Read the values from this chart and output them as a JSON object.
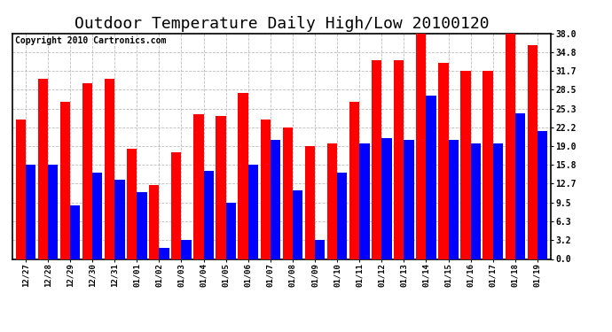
{
  "title": "Outdoor Temperature Daily High/Low 20100120",
  "copyright": "Copyright 2010 Cartronics.com",
  "dates": [
    "12/27",
    "12/28",
    "12/29",
    "12/30",
    "12/31",
    "01/01",
    "01/02",
    "01/03",
    "01/04",
    "01/05",
    "01/06",
    "01/07",
    "01/08",
    "01/09",
    "01/10",
    "01/11",
    "01/12",
    "01/13",
    "01/14",
    "01/15",
    "01/16",
    "01/17",
    "01/18",
    "01/19"
  ],
  "highs": [
    23.5,
    30.3,
    26.5,
    29.6,
    30.3,
    18.5,
    12.5,
    17.9,
    24.3,
    24.0,
    28.0,
    23.5,
    22.2,
    19.0,
    19.5,
    26.5,
    33.5,
    33.5,
    38.0,
    33.0,
    31.7,
    31.7,
    38.0,
    36.0
  ],
  "lows": [
    15.8,
    15.8,
    9.0,
    14.5,
    13.3,
    11.2,
    1.8,
    3.2,
    14.8,
    9.5,
    15.8,
    20.0,
    11.5,
    3.2,
    14.5,
    19.5,
    20.3,
    20.0,
    27.5,
    20.0,
    19.5,
    19.5,
    24.5,
    21.5
  ],
  "high_color": "#ff0000",
  "low_color": "#0000ff",
  "bg_color": "#ffffff",
  "grid_color": "#bbbbbb",
  "ylim": [
    0,
    38.0
  ],
  "yticks": [
    0.0,
    3.2,
    6.3,
    9.5,
    12.7,
    15.8,
    19.0,
    22.2,
    25.3,
    28.5,
    31.7,
    34.8,
    38.0
  ],
  "title_fontsize": 13,
  "copyright_fontsize": 7,
  "bar_width": 0.45
}
